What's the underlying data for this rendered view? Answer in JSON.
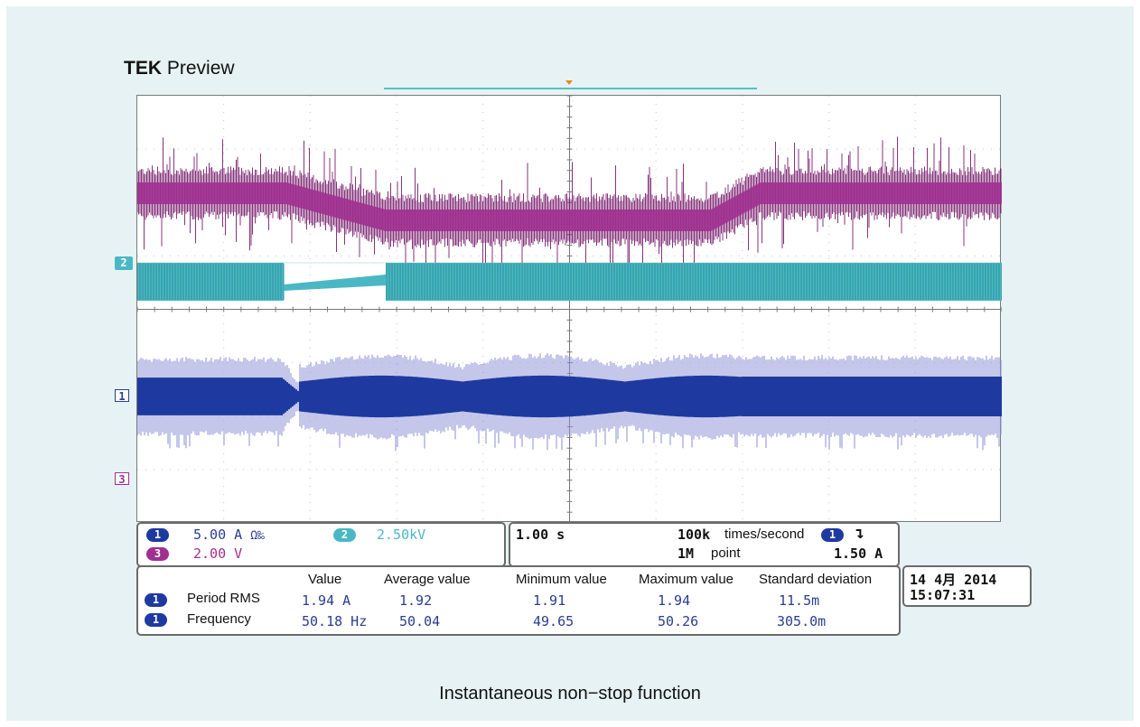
{
  "title": {
    "brand": "TEK",
    "rest": "Preview"
  },
  "channels": [
    {
      "marker": "1",
      "scale": "5.00 A",
      "suffix": "Ω‰",
      "color": "#2a3e8e"
    },
    {
      "marker": "2",
      "scale": "2.50kV",
      "color": "#4ab8c4"
    },
    {
      "marker": "3",
      "scale": "2.00 V",
      "color": "#a03090"
    }
  ],
  "horizontal": {
    "time_per_div": "1.00 s",
    "sample_rate_value": "100k",
    "sample_rate_unit": "times/second",
    "trigger_channel": "1",
    "trigger_slope_icon": "falling-edge-icon",
    "trigger_slope_glyph": "↴",
    "record_value": "1M",
    "record_unit": "point",
    "trigger_level": "1.50 A"
  },
  "measurements": {
    "headers": [
      "Value",
      "Average value",
      "Minimum value",
      "Maximum value",
      "Standard deviation"
    ],
    "rows": [
      {
        "channel": "1",
        "label": "Period RMS",
        "value": "1.94 A",
        "average": "1.92",
        "minimum": "1.91",
        "maximum": "1.94",
        "stddev": "11.5m"
      },
      {
        "channel": "1",
        "label": "Frequency",
        "value": "50.18 Hz",
        "average": "50.04",
        "minimum": "49.65",
        "maximum": "50.26",
        "stddev": "305.0m"
      }
    ]
  },
  "datetime": {
    "date": "14 4月  2014",
    "time": "15:07:31"
  },
  "caption": "Instantaneous non−stop function",
  "colors": {
    "ch1": "#1e3aa0",
    "ch2": "#4ab8c4",
    "ch3": "#a03090",
    "trigger": "#e38c1b"
  }
}
